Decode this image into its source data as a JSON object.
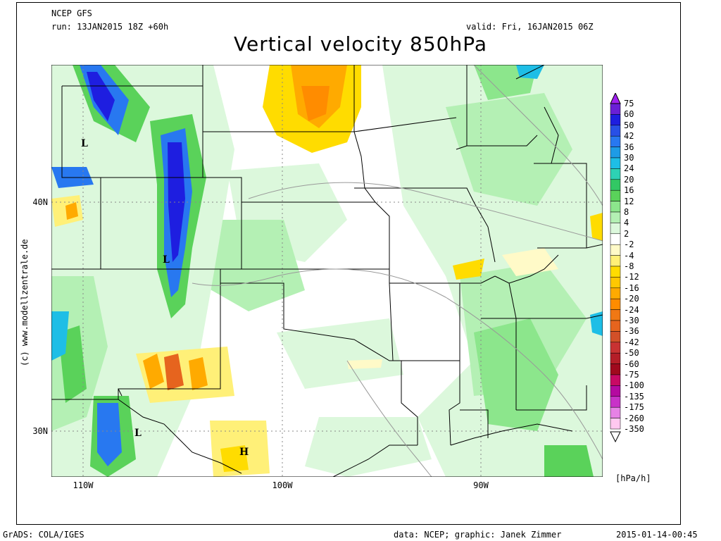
{
  "header": {
    "model": "NCEP GFS",
    "run": "run: 13JAN2015 18Z +60h",
    "valid": "valid: Fri, 16JAN2015 06Z",
    "title": "Vertical velocity 850hPa"
  },
  "map": {
    "lat_labels": [
      "40N",
      "30N"
    ],
    "lon_labels": [
      "110W",
      "100W",
      "90W"
    ],
    "pressure_marks": [
      {
        "label": "L",
        "name": "low-montana"
      },
      {
        "label": "L",
        "name": "low-new-mexico"
      },
      {
        "label": "L",
        "name": "low-chihuahua"
      },
      {
        "label": "H",
        "name": "high-texas"
      }
    ],
    "credit": "(c) www.modellzentrale.de"
  },
  "colorbar": {
    "units": "[hPa/h]",
    "levels": [
      "75",
      "60",
      "50",
      "42",
      "36",
      "30",
      "24",
      "20",
      "16",
      "12",
      "8",
      "4",
      "2",
      "-2",
      "-4",
      "-8",
      "-12",
      "-16",
      "-20",
      "-24",
      "-30",
      "-36",
      "-42",
      "-50",
      "-60",
      "-75",
      "-100",
      "-135",
      "-175",
      "-260",
      "-350"
    ],
    "colors": [
      "#a020f0",
      "#6a1fd6",
      "#1e1ee0",
      "#2850e6",
      "#2878f0",
      "#1e9be6",
      "#1ebee6",
      "#2dd2b4",
      "#32c864",
      "#5ad25a",
      "#8ce68c",
      "#b4f0b4",
      "#dcf8dc",
      "#ffffff",
      "#fffac8",
      "#fff078",
      "#ffdc00",
      "#ffc800",
      "#ffaa00",
      "#ff8c00",
      "#f07814",
      "#e6641e",
      "#d25028",
      "#c83232",
      "#b41e28",
      "#a00a1e",
      "#c80a64",
      "#b40aa0",
      "#c832c8",
      "#e682e6",
      "#ffc8f0"
    ]
  },
  "footer": {
    "left": "GrADS: COLA/IGES",
    "middle": "data: NCEP; graphic: Janek Zimmer",
    "right": "2015-01-14-00:45"
  }
}
